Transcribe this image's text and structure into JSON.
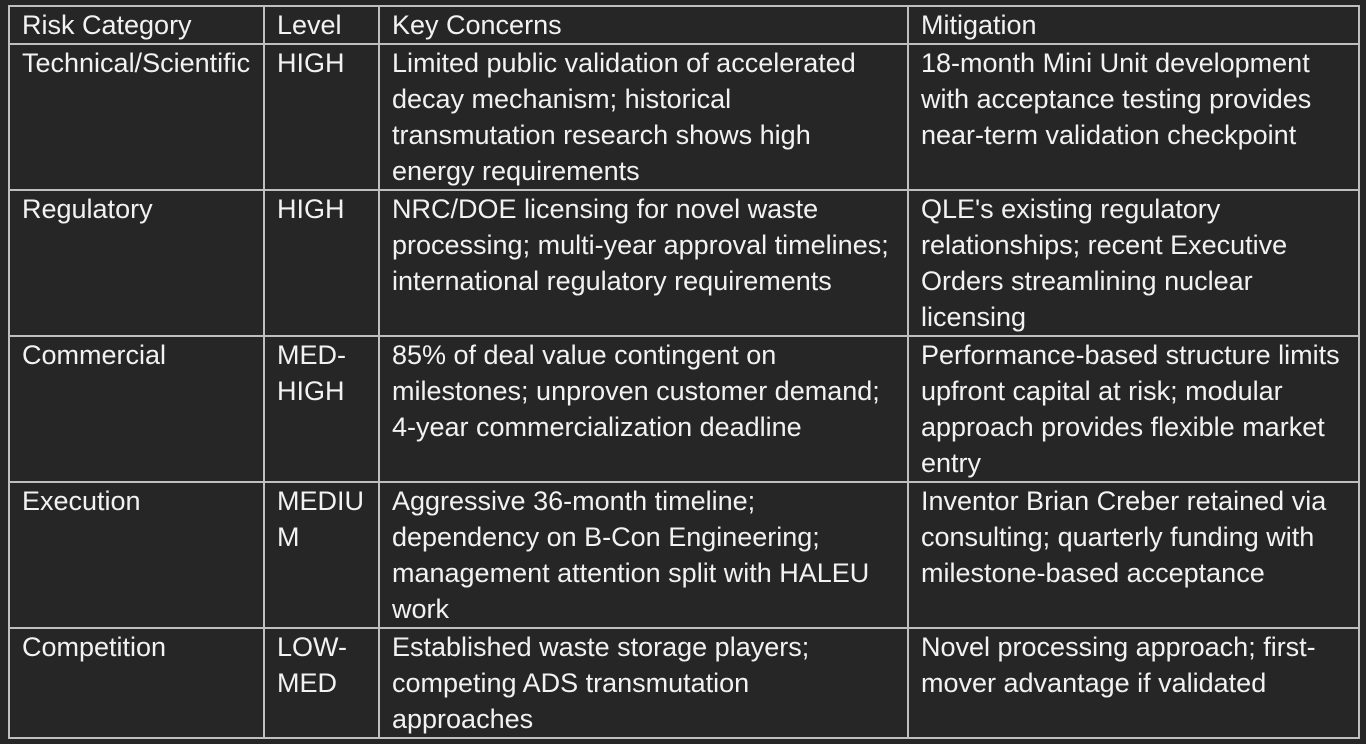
{
  "table": {
    "header": [
      "Risk Category",
      "Level",
      "Key Concerns",
      "Mitigation"
    ],
    "rows": [
      [
        "Technical/Scientific",
        "HIGH",
        "Limited public validation of accelerated decay mechanism; historical transmutation research shows high energy requirements",
        "18-month Mini Unit development with acceptance testing provides near-term validation checkpoint"
      ],
      [
        "Regulatory",
        "HIGH",
        "NRC/DOE licensing for novel waste processing; multi-year approval timelines; international regulatory requirements",
        "QLE's existing regulatory relationships; recent Executive Orders streamlining nuclear licensing"
      ],
      [
        "Commercial",
        "MED-HIGH",
        "85% of deal value contingent on milestones; unproven customer demand; 4-year commercialization deadline",
        "Performance-based structure limits upfront capital at risk; modular approach provides flexible market entry"
      ],
      [
        "Execution",
        "MEDIUM",
        "Aggressive 36-month timeline; dependency on B-Con Engineering; management attention split with HALEU work",
        "Inventor Brian Creber retained via consulting; quarterly funding with milestone-based acceptance"
      ],
      [
        "Competition",
        "LOW-MED",
        "Established waste storage players; competing ADS transmutation approaches",
        "Novel processing approach; first-mover advantage if validated"
      ]
    ]
  }
}
